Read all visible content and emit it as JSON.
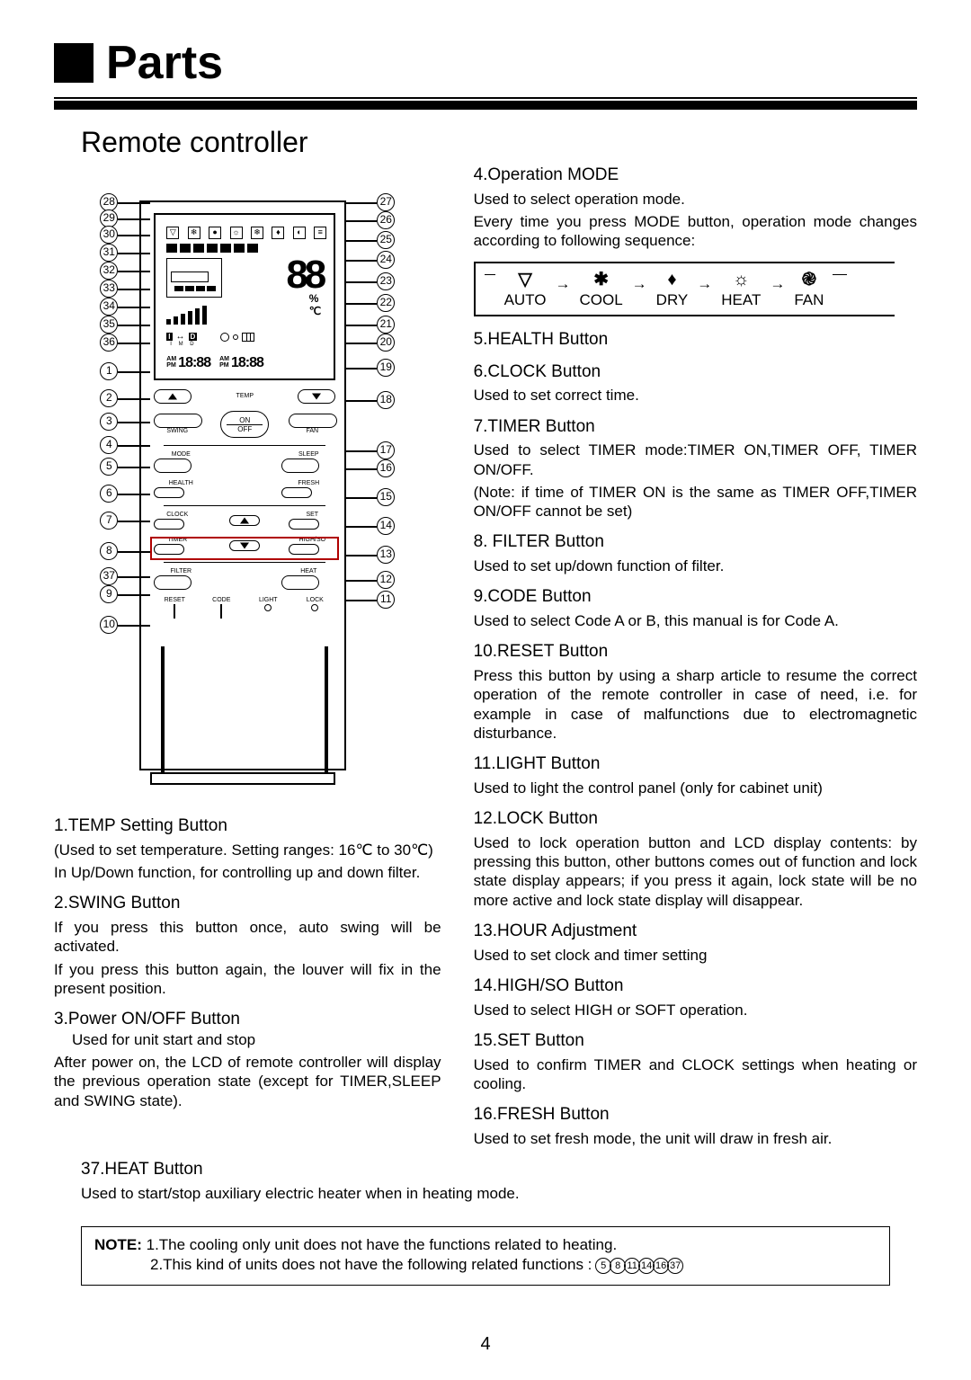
{
  "title": "Parts",
  "subtitle": "Remote controller",
  "page_number": "4",
  "colors": {
    "text": "#000000",
    "bg": "#ffffff",
    "highlight_box": "#b00000"
  },
  "remote": {
    "screen": {
      "big_digits": "88",
      "percent": "%",
      "degree": "℃",
      "imd": {
        "I": "I",
        "M": "M",
        "D": "D"
      },
      "time_left": {
        "ampm": "AM\nPM",
        "digits": "18:88"
      },
      "time_right": {
        "ampm": "AM\nPM",
        "digits": "18:88"
      }
    },
    "labels": {
      "temp": "TEMP",
      "on": "ON",
      "off": "OFF",
      "swing": "SWING",
      "fan": "FAN",
      "mode": "MODE",
      "sleep": "SLEEP",
      "health": "HEALTH",
      "fresh": "FRESH",
      "clock": "CLOCK",
      "set": "SET",
      "timer": "TIMER",
      "highso": "HIGH/SO",
      "filter": "FILTER",
      "heat": "HEAT",
      "reset": "RESET",
      "code": "CODE",
      "light": "LIGHT",
      "lock": "LOCK"
    }
  },
  "callouts_left": [
    "28",
    "29",
    "30",
    "31",
    "32",
    "33",
    "34",
    "35",
    "36",
    "1",
    "2",
    "3",
    "4",
    "5",
    "6",
    "7",
    "8",
    "37",
    "9",
    "10"
  ],
  "callouts_right": [
    "27",
    "26",
    "25",
    "24",
    "23",
    "22",
    "21",
    "20",
    "19",
    "18",
    "17",
    "16",
    "15",
    "14",
    "13",
    "12",
    "11"
  ],
  "left_desc": [
    {
      "h": "1.TEMP Setting Button",
      "body": [
        "(Used to set temperature. Setting ranges: 16℃ to 30℃)",
        "In Up/Down function, for controlling up and down filter."
      ]
    },
    {
      "h": "2.SWING Button",
      "body": [
        "If you press this button once, auto swing will be activated.",
        "If you press this button again, the louver will fix in the present position."
      ]
    },
    {
      "h": "3.Power ON/OFF Button",
      "sub": "Used for unit start and stop",
      "body": [
        "After power on, the LCD of remote controller will display the previous operation state (except for TIMER,SLEEP and SWING state)."
      ]
    },
    {
      "h": "37.HEAT Button",
      "body": [
        "Used to start/stop auxiliary electric heater when in heating mode."
      ]
    }
  ],
  "right_desc": [
    {
      "h": "4.Operation MODE",
      "body": [
        "Used to select operation mode.",
        "Every time you press MODE button, operation mode changes according to following sequence:"
      ]
    },
    {
      "h": "5.HEALTH Button"
    },
    {
      "h": "6.CLOCK Button",
      "body": [
        "Used to set correct time."
      ]
    },
    {
      "h": "7.TIMER Button",
      "body": [
        "Used to select TIMER mode:TIMER ON,TIMER OFF, TIMER ON/OFF.",
        "(Note: if time of TIMER ON is the same as TIMER OFF,TIMER ON/OFF cannot be set)"
      ]
    },
    {
      "h": "8. FILTER Button",
      "body": [
        "Used to set up/down function of filter."
      ]
    },
    {
      "h": "9.CODE Button",
      "body": [
        "Used to select Code A or B, this manual is for Code A."
      ]
    },
    {
      "h": "10.RESET Button",
      "body": [
        "Press this button by using a sharp article to resume the correct operation of the remote controller in case of need, i.e. for example in case of malfunctions due to electromagnetic disturbance."
      ]
    },
    {
      "h": "11.LIGHT Button",
      "body": [
        "Used to light the control panel (only for cabinet unit)"
      ]
    },
    {
      "h": "12.LOCK Button",
      "body": [
        "Used to lock operation button and LCD display contents: by pressing this button, other buttons comes out of function and lock state display appears; if you press it again, lock state will be no more active and lock state display will disappear."
      ]
    },
    {
      "h": "13.HOUR Adjustment",
      "body": [
        "Used to set clock and timer setting"
      ]
    },
    {
      "h": "14.HIGH/SO Button",
      "body": [
        "Used to select HIGH or SOFT operation."
      ]
    },
    {
      "h": "15.SET Button",
      "body": [
        "Used to confirm TIMER and CLOCK settings when heating or cooling."
      ]
    },
    {
      "h": "16.FRESH Button",
      "body": [
        "Used to set fresh mode, the unit will draw in fresh air."
      ]
    }
  ],
  "mode_sequence": [
    "AUTO",
    "COOL",
    "DRY",
    "HEAT",
    "FAN"
  ],
  "note": {
    "label": "NOTE:",
    "line1": "1.The cooling only  unit does not have the functions related to heating.",
    "line2_prefix": "2.This kind of units does not have the following related functions :",
    "refs": [
      "5",
      "8",
      "11",
      "14",
      "16",
      "37"
    ]
  }
}
